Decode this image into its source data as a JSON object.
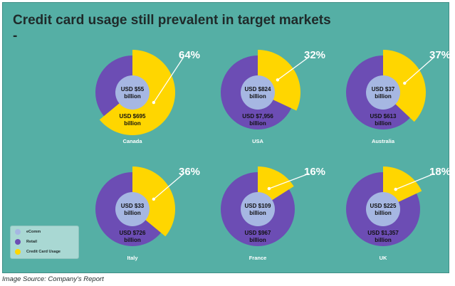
{
  "title": "Credit card usage still prevalent in target markets",
  "title_suffix": "-",
  "caption": "Image Source: Company's Report",
  "colors": {
    "background": "#55afa5",
    "ecomm": "#a6b7e2",
    "retail": "#6c4db4",
    "credit_card": "#ffd600",
    "percent_text": "#ffffff"
  },
  "chart_data": {
    "type": "pie",
    "legend": {
      "position": "bottom-left",
      "entries": [
        {
          "name": "eComm",
          "color": "#a6b7e2"
        },
        {
          "name": "Retail",
          "color": "#6c4db4"
        },
        {
          "name": "Credit Card Usage",
          "color": "#ffd600"
        }
      ]
    },
    "charts": [
      {
        "country": "Canada",
        "credit_card_pct": 64,
        "percent_label": "64%",
        "ecomm_label": [
          "USD $55",
          "billion"
        ],
        "retail_label": [
          "USD $695",
          "billion"
        ]
      },
      {
        "country": "USA",
        "credit_card_pct": 32,
        "percent_label": "32%",
        "ecomm_label": [
          "USD $824",
          "billion"
        ],
        "retail_label": [
          "USD $7,956",
          "billion"
        ]
      },
      {
        "country": "Australia",
        "credit_card_pct": 37,
        "percent_label": "37%",
        "ecomm_label": [
          "USD $37",
          "billion"
        ],
        "retail_label": [
          "USD $613",
          "billion"
        ]
      },
      {
        "country": "Italy",
        "credit_card_pct": 36,
        "percent_label": "36%",
        "ecomm_label": [
          "USD $33",
          "billion"
        ],
        "retail_label": [
          "USD $726",
          "billion"
        ]
      },
      {
        "country": "France",
        "credit_card_pct": 16,
        "percent_label": "16%",
        "ecomm_label": [
          "USD $109",
          "billion"
        ],
        "retail_label": [
          "USD $967",
          "billion"
        ]
      },
      {
        "country": "UK",
        "credit_card_pct": 18,
        "percent_label": "18%",
        "ecomm_label": [
          "USD $225",
          "billion"
        ],
        "retail_label": [
          "USD $1,357",
          "billion"
        ]
      }
    ]
  }
}
